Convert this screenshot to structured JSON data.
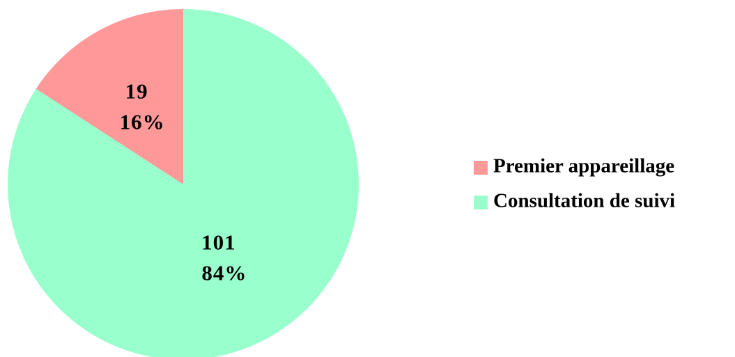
{
  "chart_data": {
    "type": "pie",
    "categories": [
      "Premier appareillage",
      "Consultation de suivi"
    ],
    "values": [
      19,
      101
    ],
    "percentages": [
      16,
      84
    ],
    "percentage_labels": [
      "16%",
      "84%"
    ],
    "colors": [
      "#ff9999",
      "#99ffcc"
    ],
    "legend": "right"
  }
}
